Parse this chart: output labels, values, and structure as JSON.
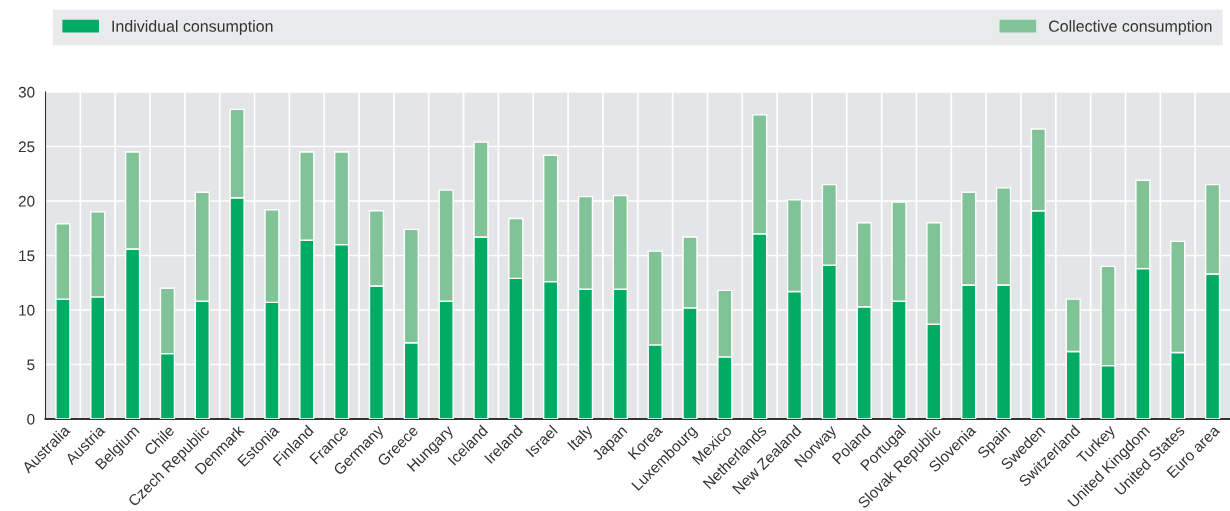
{
  "chart_data": {
    "type": "bar",
    "stacked": true,
    "categories": [
      "Australia",
      "Austria",
      "Belgium",
      "Chile",
      "Czech Republic",
      "Denmark",
      "Estonia",
      "Finland",
      "France",
      "Germany",
      "Greece",
      "Hungary",
      "Iceland",
      "Ireland",
      "Israel",
      "Italy",
      "Japan",
      "Korea",
      "Luxembourg",
      "Mexico",
      "Netherlands",
      "New Zealand",
      "Norway",
      "Poland",
      "Portugal",
      "Slovak Republic",
      "Slovenia",
      "Spain",
      "Sweden",
      "Switzerland",
      "Turkey",
      "United Kingdom",
      "United States",
      "Euro area"
    ],
    "series": [
      {
        "name": "Individual consumption",
        "color": "#00ab63",
        "values": [
          11.0,
          11.2,
          15.6,
          6.0,
          10.8,
          20.3,
          10.7,
          16.4,
          16.0,
          12.2,
          7.0,
          10.8,
          16.7,
          12.9,
          12.6,
          11.9,
          11.9,
          6.8,
          10.2,
          5.7,
          17.0,
          11.7,
          14.1,
          10.3,
          10.8,
          8.7,
          12.3,
          12.3,
          19.1,
          6.2,
          4.9,
          13.8,
          6.1,
          13.3
        ]
      },
      {
        "name": "Collective consumption",
        "color": "#80c397",
        "values": [
          6.9,
          7.8,
          8.9,
          6.0,
          10.0,
          8.1,
          8.5,
          8.1,
          8.5,
          6.9,
          10.4,
          10.2,
          8.7,
          5.5,
          11.6,
          8.5,
          8.6,
          8.6,
          6.5,
          6.1,
          10.9,
          8.4,
          7.4,
          7.7,
          9.1,
          9.3,
          8.5,
          8.9,
          7.5,
          4.8,
          9.1,
          8.1,
          10.2,
          8.2
        ]
      }
    ],
    "ylim": [
      0,
      30
    ],
    "yticks": [
      0,
      5,
      10,
      15,
      20,
      25,
      30
    ],
    "grid": true,
    "legend": "top"
  }
}
